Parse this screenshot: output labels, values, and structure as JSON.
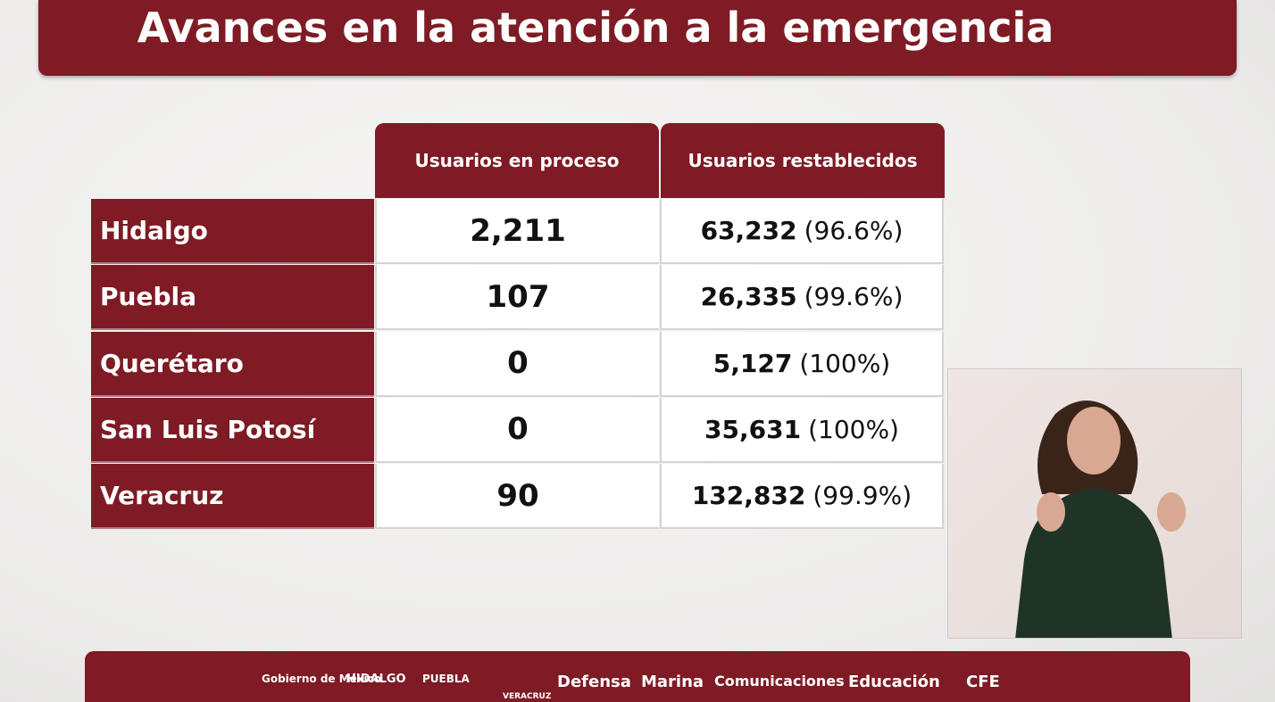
{
  "header": {
    "title": "Avances en la atención a la emergencia"
  },
  "table": {
    "columns": [
      "Usuarios en proceso",
      "Usuarios restablecidos"
    ],
    "rows": [
      {
        "label": "Hidalgo",
        "in_process": "2,211",
        "restored": "63,232",
        "restored_pct": "(96.6%)"
      },
      {
        "label": "Puebla",
        "in_process": "107",
        "restored": "26,335",
        "restored_pct": "(99.6%)"
      },
      {
        "label": "Querétaro",
        "in_process": "0",
        "restored": "5,127",
        "restored_pct": "(100%)"
      },
      {
        "label": "San Luis Potosí",
        "in_process": "0",
        "restored": "35,631",
        "restored_pct": "(100%)"
      },
      {
        "label": "Veracruz",
        "in_process": "90",
        "restored": "132,832",
        "restored_pct": "(99.9%)"
      }
    ]
  },
  "footer": {
    "logos": [
      "Gobierno de México",
      "HIDALGO",
      "PUEBLA",
      "VERACRUZ",
      "Defensa",
      "Marina",
      "Comunicaciones",
      "Educación",
      "CFE"
    ]
  }
}
